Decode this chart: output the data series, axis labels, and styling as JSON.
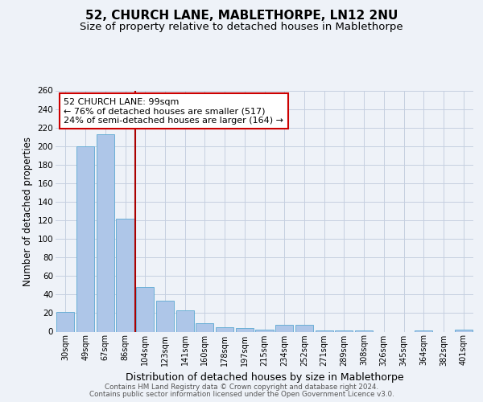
{
  "title": "52, CHURCH LANE, MABLETHORPE, LN12 2NU",
  "subtitle": "Size of property relative to detached houses in Mablethorpe",
  "xlabel": "Distribution of detached houses by size in Mablethorpe",
  "ylabel": "Number of detached properties",
  "bar_labels": [
    "30sqm",
    "49sqm",
    "67sqm",
    "86sqm",
    "104sqm",
    "123sqm",
    "141sqm",
    "160sqm",
    "178sqm",
    "197sqm",
    "215sqm",
    "234sqm",
    "252sqm",
    "271sqm",
    "289sqm",
    "308sqm",
    "326sqm",
    "345sqm",
    "364sqm",
    "382sqm",
    "401sqm"
  ],
  "bar_values": [
    21,
    200,
    213,
    122,
    48,
    33,
    23,
    9,
    5,
    4,
    2,
    7,
    7,
    1,
    1,
    1,
    0,
    0,
    1,
    0,
    2
  ],
  "bar_color": "#aec6e8",
  "bar_edgecolor": "#6aafd6",
  "annotation_text_line1": "52 CHURCH LANE: 99sqm",
  "annotation_text_line2": "← 76% of detached houses are smaller (517)",
  "annotation_text_line3": "24% of semi-detached houses are larger (164) →",
  "annotation_box_edgecolor": "#cc0000",
  "vline_color": "#aa0000",
  "ylim": [
    0,
    260
  ],
  "yticks": [
    0,
    20,
    40,
    60,
    80,
    100,
    120,
    140,
    160,
    180,
    200,
    220,
    240,
    260
  ],
  "bg_color": "#eef2f8",
  "plot_bg_color": "#eef2f8",
  "grid_color": "#c5cfe0",
  "title_fontsize": 11,
  "subtitle_fontsize": 9.5,
  "xlabel_fontsize": 9,
  "ylabel_fontsize": 8.5,
  "footer_line1": "Contains HM Land Registry data © Crown copyright and database right 2024.",
  "footer_line2": "Contains public sector information licensed under the Open Government Licence v3.0."
}
